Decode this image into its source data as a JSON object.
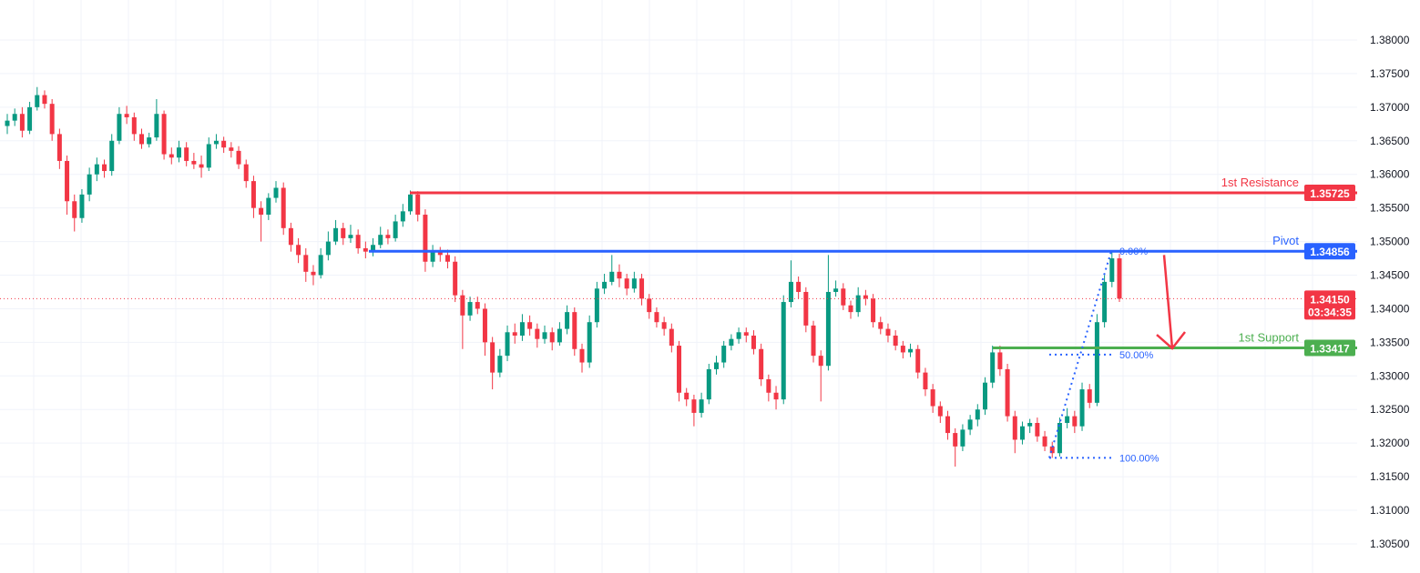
{
  "chart_data": {
    "type": "candlestick",
    "ylim": [
      1.3015,
      1.3855
    ],
    "y_ticks": [
      "1.38000",
      "1.37500",
      "1.37000",
      "1.36500",
      "1.36000",
      "1.35500",
      "1.35000",
      "1.34500",
      "1.34000",
      "1.33500",
      "1.33000",
      "1.32500",
      "1.32000",
      "1.31500",
      "1.31000",
      "1.30500"
    ],
    "grid": true,
    "colors": {
      "up": "#089981",
      "down": "#f23645",
      "grid": "#f0f3fa"
    },
    "candles": [
      [
        1.3672,
        1.369,
        1.366,
        1.368
      ],
      [
        1.368,
        1.3698,
        1.3672,
        1.369
      ],
      [
        1.369,
        1.37,
        1.3655,
        1.3665
      ],
      [
        1.3665,
        1.3708,
        1.366,
        1.37
      ],
      [
        1.37,
        1.373,
        1.3695,
        1.3718
      ],
      [
        1.3718,
        1.3725,
        1.3698,
        1.3705
      ],
      [
        1.3705,
        1.3712,
        1.365,
        1.366
      ],
      [
        1.366,
        1.3668,
        1.3608,
        1.362
      ],
      [
        1.362,
        1.3628,
        1.354,
        1.356
      ],
      [
        1.356,
        1.357,
        1.3515,
        1.3535
      ],
      [
        1.3535,
        1.3578,
        1.3528,
        1.357
      ],
      [
        1.357,
        1.361,
        1.356,
        1.36
      ],
      [
        1.36,
        1.3625,
        1.359,
        1.3615
      ],
      [
        1.3615,
        1.3622,
        1.3595,
        1.3605
      ],
      [
        1.3605,
        1.366,
        1.3598,
        1.365
      ],
      [
        1.365,
        1.37,
        1.3645,
        1.369
      ],
      [
        1.369,
        1.3702,
        1.3675,
        1.3685
      ],
      [
        1.3685,
        1.3692,
        1.365,
        1.366
      ],
      [
        1.366,
        1.3668,
        1.3638,
        1.3645
      ],
      [
        1.3645,
        1.3662,
        1.364,
        1.3655
      ],
      [
        1.3655,
        1.3712,
        1.365,
        1.369
      ],
      [
        1.369,
        1.3695,
        1.3622,
        1.363
      ],
      [
        1.363,
        1.364,
        1.3615,
        1.3625
      ],
      [
        1.3625,
        1.365,
        1.3618,
        1.364
      ],
      [
        1.364,
        1.3648,
        1.3612,
        1.362
      ],
      [
        1.362,
        1.3632,
        1.3608,
        1.3615
      ],
      [
        1.3615,
        1.3628,
        1.3595,
        1.361
      ],
      [
        1.361,
        1.3655,
        1.3605,
        1.3645
      ],
      [
        1.3645,
        1.366,
        1.3638,
        1.365
      ],
      [
        1.365,
        1.3656,
        1.3632,
        1.364
      ],
      [
        1.364,
        1.3648,
        1.3625,
        1.3635
      ],
      [
        1.3635,
        1.3642,
        1.3608,
        1.3615
      ],
      [
        1.3615,
        1.3622,
        1.358,
        1.359
      ],
      [
        1.359,
        1.3598,
        1.3535,
        1.355
      ],
      [
        1.355,
        1.356,
        1.35,
        1.354
      ],
      [
        1.354,
        1.3572,
        1.3532,
        1.3565
      ],
      [
        1.3565,
        1.359,
        1.3558,
        1.358
      ],
      [
        1.358,
        1.3588,
        1.351,
        1.352
      ],
      [
        1.352,
        1.3528,
        1.3485,
        1.3495
      ],
      [
        1.3495,
        1.3505,
        1.3468,
        1.348
      ],
      [
        1.348,
        1.349,
        1.344,
        1.3455
      ],
      [
        1.3455,
        1.3465,
        1.3435,
        1.345
      ],
      [
        1.345,
        1.349,
        1.3445,
        1.348
      ],
      [
        1.348,
        1.3515,
        1.3472,
        1.35
      ],
      [
        1.35,
        1.3532,
        1.3495,
        1.352
      ],
      [
        1.352,
        1.3528,
        1.3495,
        1.3505
      ],
      [
        1.3505,
        1.3525,
        1.3498,
        1.351
      ],
      [
        1.351,
        1.3518,
        1.3482,
        1.349
      ],
      [
        1.349,
        1.35,
        1.3475,
        1.3485
      ],
      [
        1.3485,
        1.3505,
        1.3478,
        1.3495
      ],
      [
        1.3495,
        1.3522,
        1.349,
        1.351
      ],
      [
        1.351,
        1.3518,
        1.3496,
        1.3505
      ],
      [
        1.3505,
        1.354,
        1.35,
        1.353
      ],
      [
        1.353,
        1.3556,
        1.3522,
        1.3545
      ],
      [
        1.3545,
        1.3576,
        1.354,
        1.357
      ],
      [
        1.357,
        1.3575,
        1.353,
        1.354
      ],
      [
        1.354,
        1.3548,
        1.3455,
        1.347
      ],
      [
        1.347,
        1.3495,
        1.3462,
        1.3485
      ],
      [
        1.3485,
        1.3492,
        1.347,
        1.348
      ],
      [
        1.348,
        1.3488,
        1.346,
        1.347
      ],
      [
        1.347,
        1.3478,
        1.341,
        1.342
      ],
      [
        1.342,
        1.3428,
        1.334,
        1.339
      ],
      [
        1.339,
        1.3418,
        1.3382,
        1.341
      ],
      [
        1.341,
        1.3418,
        1.3392,
        1.34
      ],
      [
        1.34,
        1.3408,
        1.333,
        1.335
      ],
      [
        1.335,
        1.3358,
        1.328,
        1.3305
      ],
      [
        1.3305,
        1.334,
        1.3298,
        1.333
      ],
      [
        1.333,
        1.3375,
        1.3322,
        1.3365
      ],
      [
        1.3365,
        1.3378,
        1.3348,
        1.336
      ],
      [
        1.336,
        1.3392,
        1.3352,
        1.338
      ],
      [
        1.338,
        1.339,
        1.336,
        1.337
      ],
      [
        1.337,
        1.3378,
        1.3342,
        1.3355
      ],
      [
        1.3355,
        1.3375,
        1.3348,
        1.3365
      ],
      [
        1.3365,
        1.3372,
        1.3338,
        1.335
      ],
      [
        1.335,
        1.338,
        1.3345,
        1.337
      ],
      [
        1.337,
        1.3405,
        1.3362,
        1.3395
      ],
      [
        1.3395,
        1.3402,
        1.333,
        1.334
      ],
      [
        1.334,
        1.3348,
        1.3305,
        1.332
      ],
      [
        1.332,
        1.339,
        1.3312,
        1.338
      ],
      [
        1.338,
        1.344,
        1.3372,
        1.343
      ],
      [
        1.343,
        1.3452,
        1.3422,
        1.344
      ],
      [
        1.344,
        1.348,
        1.3435,
        1.3455
      ],
      [
        1.3455,
        1.3466,
        1.3432,
        1.3445
      ],
      [
        1.3445,
        1.3452,
        1.342,
        1.343
      ],
      [
        1.343,
        1.3455,
        1.3424,
        1.3445
      ],
      [
        1.3445,
        1.3452,
        1.3405,
        1.3415
      ],
      [
        1.3415,
        1.3422,
        1.3385,
        1.3395
      ],
      [
        1.3395,
        1.3402,
        1.3372,
        1.338
      ],
      [
        1.338,
        1.3388,
        1.336,
        1.337
      ],
      [
        1.337,
        1.3378,
        1.3335,
        1.3345
      ],
      [
        1.3345,
        1.3352,
        1.3262,
        1.3275
      ],
      [
        1.3275,
        1.3282,
        1.3255,
        1.3265
      ],
      [
        1.3265,
        1.3272,
        1.3225,
        1.3245
      ],
      [
        1.3245,
        1.3275,
        1.3238,
        1.3265
      ],
      [
        1.3265,
        1.3318,
        1.3258,
        1.331
      ],
      [
        1.331,
        1.333,
        1.3302,
        1.332
      ],
      [
        1.332,
        1.3352,
        1.3312,
        1.3345
      ],
      [
        1.3345,
        1.3362,
        1.3338,
        1.3355
      ],
      [
        1.3355,
        1.3372,
        1.3348,
        1.3365
      ],
      [
        1.3365,
        1.3372,
        1.335,
        1.336
      ],
      [
        1.336,
        1.3368,
        1.3332,
        1.334
      ],
      [
        1.334,
        1.3348,
        1.3285,
        1.3295
      ],
      [
        1.3295,
        1.3302,
        1.3262,
        1.3275
      ],
      [
        1.3275,
        1.3285,
        1.325,
        1.3265
      ],
      [
        1.3265,
        1.342,
        1.3258,
        1.341
      ],
      [
        1.341,
        1.3472,
        1.3402,
        1.344
      ],
      [
        1.344,
        1.3448,
        1.3415,
        1.3425
      ],
      [
        1.3425,
        1.3432,
        1.3365,
        1.3375
      ],
      [
        1.3375,
        1.3382,
        1.332,
        1.333
      ],
      [
        1.333,
        1.3338,
        1.3262,
        1.3315
      ],
      [
        1.3315,
        1.348,
        1.3308,
        1.3425
      ],
      [
        1.3425,
        1.3442,
        1.3418,
        1.343
      ],
      [
        1.343,
        1.3438,
        1.3398,
        1.3405
      ],
      [
        1.3405,
        1.3412,
        1.3385,
        1.3395
      ],
      [
        1.3395,
        1.3432,
        1.3388,
        1.342
      ],
      [
        1.342,
        1.3428,
        1.3405,
        1.3415
      ],
      [
        1.3415,
        1.3422,
        1.3372,
        1.338
      ],
      [
        1.338,
        1.3388,
        1.3362,
        1.337
      ],
      [
        1.337,
        1.3378,
        1.335,
        1.336
      ],
      [
        1.336,
        1.3368,
        1.3338,
        1.3345
      ],
      [
        1.3345,
        1.3352,
        1.3326,
        1.3335
      ],
      [
        1.3335,
        1.3348,
        1.3328,
        1.334
      ],
      [
        1.334,
        1.3346,
        1.3296,
        1.3305
      ],
      [
        1.3305,
        1.3312,
        1.327,
        1.328
      ],
      [
        1.328,
        1.3288,
        1.3245,
        1.3255
      ],
      [
        1.3255,
        1.3262,
        1.323,
        1.324
      ],
      [
        1.324,
        1.3248,
        1.3205,
        1.3215
      ],
      [
        1.3215,
        1.3222,
        1.3165,
        1.3195
      ],
      [
        1.3195,
        1.3228,
        1.3188,
        1.322
      ],
      [
        1.322,
        1.3242,
        1.3212,
        1.3235
      ],
      [
        1.3235,
        1.3258,
        1.3225,
        1.325
      ],
      [
        1.325,
        1.3298,
        1.3242,
        1.329
      ],
      [
        1.329,
        1.3345,
        1.3282,
        1.3335
      ],
      [
        1.3335,
        1.3345,
        1.33,
        1.331
      ],
      [
        1.331,
        1.3318,
        1.3232,
        1.324
      ],
      [
        1.324,
        1.3248,
        1.3185,
        1.3205
      ],
      [
        1.3205,
        1.3232,
        1.3198,
        1.3225
      ],
      [
        1.3225,
        1.3236,
        1.3215,
        1.323
      ],
      [
        1.323,
        1.3238,
        1.3202,
        1.321
      ],
      [
        1.321,
        1.3218,
        1.3188,
        1.3195
      ],
      [
        1.3195,
        1.3202,
        1.3178,
        1.3185
      ],
      [
        1.3185,
        1.3238,
        1.318,
        1.323
      ],
      [
        1.323,
        1.3252,
        1.3222,
        1.324
      ],
      [
        1.324,
        1.3248,
        1.3215,
        1.3225
      ],
      [
        1.3225,
        1.329,
        1.3218,
        1.328
      ],
      [
        1.328,
        1.3288,
        1.3252,
        1.326
      ],
      [
        1.326,
        1.3392,
        1.3255,
        1.338
      ],
      [
        1.338,
        1.345,
        1.3372,
        1.344
      ],
      [
        1.344,
        1.3486,
        1.3432,
        1.3475
      ],
      [
        1.3475,
        1.3482,
        1.341,
        1.3415
      ]
    ],
    "levels": [
      {
        "label": "1st Resistance",
        "value": 1.35725,
        "tag": "1.35725",
        "color": "#f23645"
      },
      {
        "label": "Pivot",
        "value": 1.34856,
        "tag": "1.34856",
        "color": "#2962ff"
      },
      {
        "label": "1st Support",
        "value": 1.33417,
        "tag": "1.33417",
        "color": "#4caf50"
      }
    ],
    "current_price": {
      "value": 1.3415,
      "tag": "1.34150",
      "countdown": "03:34:35",
      "color": "#f23645"
    },
    "fibonacci": {
      "color": "#2962ff",
      "high": 1.34856,
      "low": 1.3178,
      "levels": [
        {
          "label": "0.00%",
          "value": 1.34856
        },
        {
          "label": "50.00%",
          "value": 1.33318
        },
        {
          "label": "100.00%",
          "value": 1.3178
        }
      ]
    },
    "annotation": {
      "type": "arrow-down",
      "color": "#f23645",
      "from": 1.348,
      "to": 1.3341
    }
  }
}
